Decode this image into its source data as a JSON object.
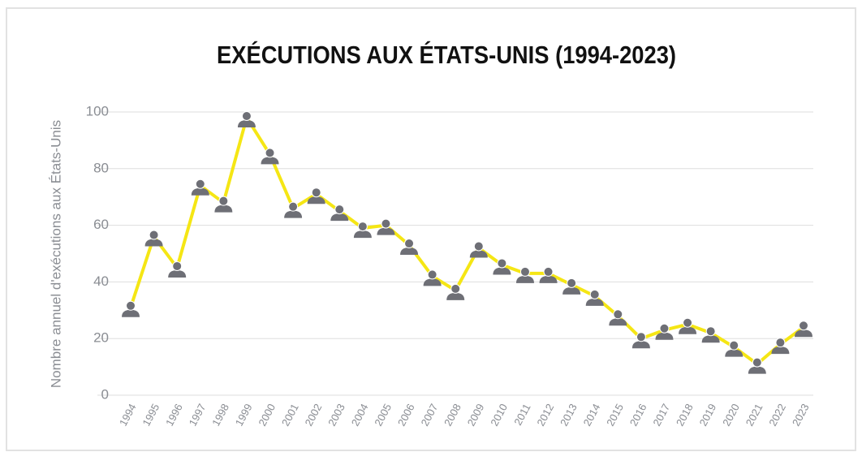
{
  "chart_data": {
    "type": "line",
    "title": "EXÉCUTIONS AUX ÉTATS-UNIS (1994-2023)",
    "y_label": "Nombre annuel d'exécutions aux États-Unis",
    "categories": [
      "1994",
      "1995",
      "1996",
      "1997",
      "1998",
      "1999",
      "2000",
      "2001",
      "2002",
      "2003",
      "2004",
      "2005",
      "2006",
      "2007",
      "2008",
      "2009",
      "2010",
      "2011",
      "2012",
      "2013",
      "2014",
      "2015",
      "2016",
      "2017",
      "2018",
      "2019",
      "2020",
      "2021",
      "2022",
      "2023"
    ],
    "values": [
      31,
      56,
      45,
      74,
      68,
      98,
      85,
      66,
      71,
      65,
      59,
      60,
      53,
      42,
      37,
      52,
      46,
      43,
      43,
      39,
      35,
      28,
      20,
      23,
      25,
      22,
      17,
      11,
      18,
      24
    ],
    "color": "#f5e614",
    "marker_color": "#6e6f76",
    "ylim": [
      0,
      100
    ],
    "yticks": [
      0,
      20,
      40,
      60,
      80,
      100
    ],
    "grid": true
  }
}
